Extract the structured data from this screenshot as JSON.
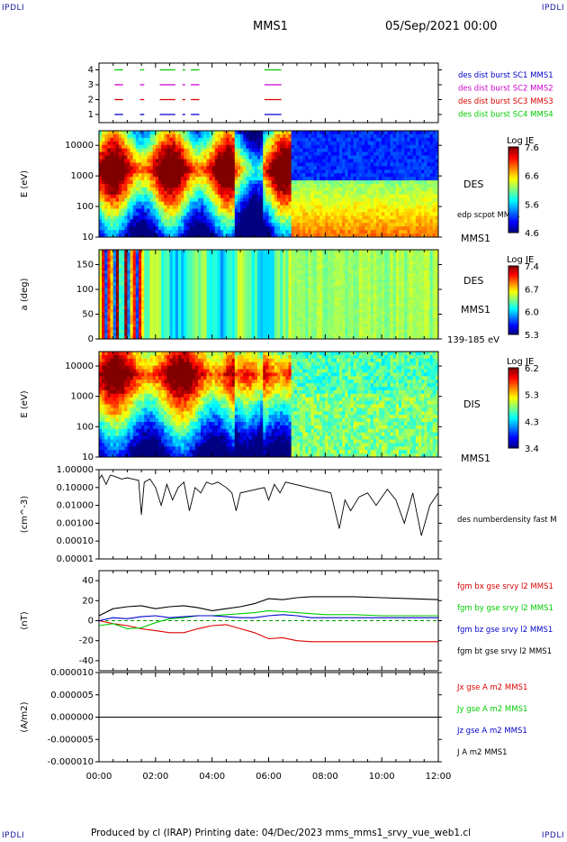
{
  "header": {
    "corner_tl": "IPDLI",
    "corner_tr": "IPDLI",
    "corner_bl": "IPDLI",
    "corner_br": "IPDLI",
    "title": "MMS1",
    "datetime": "05/Sep/2021 00:00"
  },
  "footer": {
    "text": "Produced by cl (IRAP)   Printing date: 04/Dec/2023   mms_mms1_srvy_vue_web1.cl"
  },
  "time_axis": {
    "ticks": [
      "00:00",
      "02:00",
      "04:00",
      "06:00",
      "08:00",
      "10:00",
      "12:00"
    ],
    "range_hours": [
      0,
      12
    ]
  },
  "colors": {
    "sc1": "#0000cc",
    "sc2": "#cc00cc",
    "sc3": "#dd0000",
    "sc4": "#00cc00",
    "bt": "#000000",
    "zero_line": "#009900"
  },
  "chart_data": [
    {
      "type": "timeline",
      "panel": "availability",
      "yticks": [
        "1",
        "2",
        "3",
        "4"
      ],
      "legend": [
        {
          "label": "des dist burst SC1 MMS1",
          "color": "#0000cc"
        },
        {
          "label": "des dist burst SC2 MMS2",
          "color": "#cc00cc"
        },
        {
          "label": "des dist burst SC3 MMS3",
          "color": "#dd0000"
        },
        {
          "label": "des dist burst SC4 MMS4",
          "color": "#00cc00"
        }
      ],
      "intervals_hours": [
        [
          0.55,
          0.85
        ],
        [
          1.45,
          1.6
        ],
        [
          2.15,
          2.7
        ],
        [
          2.95,
          3.05
        ],
        [
          3.25,
          3.55
        ],
        [
          5.85,
          6.45
        ]
      ]
    },
    {
      "type": "heatmap",
      "panel": "des_energy_spectrogram",
      "ylabel": "E (eV)",
      "yscale": "log",
      "yticks": [
        "10",
        "100",
        "1000",
        "10000"
      ],
      "ylim": [
        10,
        30000
      ],
      "instrument_label": "DES",
      "overlay_label": "edp scpot MMS1",
      "sc_label": "MMS1",
      "colorbar": {
        "title": "Log JE",
        "ticks": [
          "7.6",
          "6.6",
          "5.6",
          "4.6"
        ],
        "range": [
          4.6,
          7.6
        ]
      }
    },
    {
      "type": "heatmap",
      "panel": "des_pitch_angle",
      "ylabel": "a (deg)",
      "yticks": [
        "0",
        "50",
        "100",
        "150"
      ],
      "ylim": [
        0,
        180
      ],
      "instrument_label": "DES",
      "sc_label": "MMS1",
      "energy_range_label": "139-185 eV",
      "colorbar": {
        "title": "Log JE",
        "ticks": [
          "7.4",
          "6.7",
          "6.0",
          "5.3"
        ],
        "range": [
          5.3,
          7.4
        ]
      }
    },
    {
      "type": "heatmap",
      "panel": "dis_energy_spectrogram",
      "ylabel": "E (eV)",
      "yscale": "log",
      "yticks": [
        "10",
        "100",
        "1000",
        "10000"
      ],
      "ylim": [
        10,
        30000
      ],
      "instrument_label": "DIS",
      "sc_label": "MMS1",
      "colorbar": {
        "title": "Log JE",
        "ticks": [
          "6.2",
          "5.3",
          "4.3",
          "3.4"
        ],
        "range": [
          3.4,
          6.2
        ]
      }
    },
    {
      "type": "line",
      "panel": "density",
      "ylabel": "(cm^-3)",
      "yscale": "log",
      "yticks": [
        "1.00000",
        "0.10000",
        "0.01000",
        "0.00100",
        "0.00010",
        "0.00001"
      ],
      "ylim": [
        1e-05,
        1.0
      ],
      "legend": [
        {
          "label": "des numberdensity fast M",
          "color": "#000000"
        }
      ],
      "series": [
        {
          "x": [
            0.0,
            0.1,
            0.25,
            0.4,
            0.6,
            0.8,
            1.0,
            1.2,
            1.4,
            1.5,
            1.6,
            1.8,
            2.0,
            2.2,
            2.4,
            2.6,
            2.8,
            3.0,
            3.2,
            3.4,
            3.6,
            3.8,
            4.0,
            4.2,
            4.5,
            4.7,
            4.85,
            5.0,
            5.85,
            6.0,
            6.2,
            6.4,
            6.6,
            8.2,
            8.5,
            8.7,
            8.9,
            9.2,
            9.5,
            9.8,
            10.2,
            10.5,
            10.8,
            11.1,
            11.4,
            11.7,
            12.0
          ],
          "values": [
            0.3,
            0.5,
            0.15,
            0.5,
            0.4,
            0.3,
            0.35,
            0.3,
            0.25,
            0.003,
            0.2,
            0.3,
            0.1,
            0.01,
            0.15,
            0.02,
            0.1,
            0.2,
            0.005,
            0.1,
            0.05,
            0.2,
            0.15,
            0.2,
            0.1,
            0.05,
            0.005,
            0.05,
            0.1,
            0.02,
            0.15,
            0.05,
            0.2,
            0.05,
            0.0005,
            0.02,
            0.005,
            0.03,
            0.05,
            0.01,
            0.08,
            0.02,
            0.001,
            0.05,
            0.0002,
            0.01,
            0.05
          ]
        }
      ]
    },
    {
      "type": "line",
      "panel": "magnetic_field",
      "ylabel": "(nT)",
      "yticks": [
        "40",
        "20",
        "0",
        "-20",
        "-40"
      ],
      "ylim": [
        -50,
        50
      ],
      "legend": [
        {
          "label": "fgm bx gse srvy l2 MMS1",
          "color": "#dd0000"
        },
        {
          "label": "fgm by gse srvy l2 MMS1",
          "color": "#00cc00"
        },
        {
          "label": "fgm bz gse srvy l2 MMS1",
          "color": "#0000cc"
        },
        {
          "label": "fgm bt gse srvy l2 MMS1",
          "color": "#000000"
        }
      ],
      "x": [
        0.0,
        0.5,
        1.0,
        1.5,
        2.0,
        2.5,
        3.0,
        3.5,
        4.0,
        4.5,
        5.0,
        5.5,
        6.0,
        6.5,
        7.0,
        7.5,
        8.0,
        9.0,
        10.0,
        11.0,
        12.0
      ],
      "series": [
        {
          "name": "bx",
          "values": [
            0,
            -3,
            -5,
            -8,
            -10,
            -12,
            -12,
            -8,
            -5,
            -4,
            -8,
            -12,
            -18,
            -17,
            -20,
            -21,
            -21,
            -21,
            -21,
            -21,
            -21
          ]
        },
        {
          "name": "by",
          "values": [
            -5,
            -3,
            -8,
            -7,
            -2,
            2,
            3,
            5,
            5,
            6,
            7,
            8,
            10,
            9,
            8,
            7,
            6,
            6,
            5,
            5,
            5
          ]
        },
        {
          "name": "bz",
          "values": [
            0,
            3,
            2,
            4,
            5,
            3,
            4,
            5,
            5,
            4,
            3,
            3,
            5,
            6,
            5,
            3,
            3,
            3,
            3,
            3,
            3
          ]
        },
        {
          "name": "bt",
          "values": [
            5,
            12,
            14,
            15,
            12,
            14,
            15,
            13,
            10,
            12,
            14,
            17,
            22,
            21,
            23,
            24,
            24,
            24,
            23,
            22,
            21
          ]
        }
      ]
    },
    {
      "type": "line",
      "panel": "current_density",
      "ylabel": "(A/m2)",
      "yticks": [
        "0.000010",
        "0.000005",
        "0.000000",
        "-0.000005",
        "-0.000010"
      ],
      "ylim": [
        -1e-05,
        1e-05
      ],
      "legend": [
        {
          "label": "Jx gse A m2 MMS1",
          "color": "#dd0000"
        },
        {
          "label": "Jy gse A m2 MMS1",
          "color": "#00cc00"
        },
        {
          "label": "Jz gse A m2 MMS1",
          "color": "#0000cc"
        },
        {
          "label": "J A m2 MMS1",
          "color": "#000000"
        }
      ],
      "x": [
        0,
        12
      ],
      "values": [
        0.0,
        0.0
      ]
    }
  ]
}
